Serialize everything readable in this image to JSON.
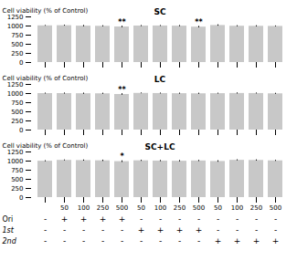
{
  "chart_data": [
    {
      "type": "bar",
      "title": "SC",
      "ylabel": "Cell viability (% of Control)",
      "categories": [
        null,
        "50",
        "100",
        "250",
        "500",
        "50",
        "100",
        "250",
        "500",
        "50",
        "100",
        "250",
        "500"
      ],
      "values": [
        1005,
        1010,
        998,
        993,
        975,
        1000,
        1002,
        998,
        970,
        1015,
        995,
        993,
        990
      ],
      "errors": [
        10,
        12,
        18,
        15,
        20,
        14,
        12,
        16,
        20,
        18,
        14,
        15,
        12
      ],
      "significance": [
        null,
        null,
        null,
        null,
        "**",
        null,
        null,
        null,
        "**",
        null,
        null,
        null,
        null
      ],
      "color": "#c8c8c8",
      "ylim": [
        0,
        1250
      ],
      "yticks": [
        0,
        250,
        500,
        750,
        1000,
        1250
      ],
      "tick_labels": "y"
    },
    {
      "type": "bar",
      "title": "LC",
      "ylabel": "Cell viability (% of Control)",
      "categories": [
        null,
        "50",
        "100",
        "250",
        "500",
        "50",
        "100",
        "250",
        "500",
        "50",
        "100",
        "250",
        "500"
      ],
      "values": [
        1000,
        1000,
        996,
        994,
        975,
        1005,
        1001,
        997,
        994,
        998,
        1003,
        1002,
        993
      ],
      "errors": [
        12,
        14,
        16,
        15,
        20,
        10,
        12,
        14,
        15,
        12,
        14,
        12,
        14
      ],
      "significance": [
        null,
        null,
        null,
        null,
        "**",
        null,
        null,
        null,
        null,
        null,
        null,
        null,
        null
      ],
      "color": "#c8c8c8",
      "ylim": [
        0,
        1250
      ],
      "yticks": [
        0,
        250,
        500,
        750,
        1000,
        1250
      ],
      "tick_labels": "y"
    },
    {
      "type": "bar",
      "title": "SC+LC",
      "ylabel": "Cell viability (% of Control)",
      "categories": [
        null,
        "50",
        "100",
        "250",
        "500",
        "50",
        "100",
        "250",
        "500",
        "50",
        "100",
        "250",
        "500"
      ],
      "values": [
        997,
        1020,
        1015,
        1008,
        985,
        1008,
        1001,
        997,
        1004,
        990,
        1022,
        1018,
        1007
      ],
      "errors": [
        14,
        12,
        15,
        18,
        22,
        14,
        16,
        18,
        16,
        20,
        14,
        15,
        14
      ],
      "significance": [
        null,
        null,
        null,
        null,
        "*",
        null,
        null,
        null,
        null,
        null,
        null,
        null,
        null
      ],
      "color": "#c8c8c8",
      "ylim": [
        0,
        1250
      ],
      "yticks": [
        0,
        250,
        500,
        750,
        1000,
        1250
      ],
      "rows": [
        {
          "label": "Ori",
          "signs": [
            "-",
            "+",
            "+",
            "+",
            "+",
            "-",
            "-",
            "-",
            "-",
            "-",
            "-",
            "-",
            "-"
          ]
        },
        {
          "label": "1st",
          "signs": [
            "-",
            "-",
            "-",
            "-",
            "-",
            "+",
            "+",
            "+",
            "+",
            "-",
            "-",
            "-",
            "-"
          ]
        },
        {
          "label": "2nd",
          "signs": [
            "-",
            "-",
            "-",
            "-",
            "-",
            "-",
            "-",
            "-",
            "-",
            "+",
            "+",
            "+",
            "+"
          ]
        }
      ]
    }
  ]
}
